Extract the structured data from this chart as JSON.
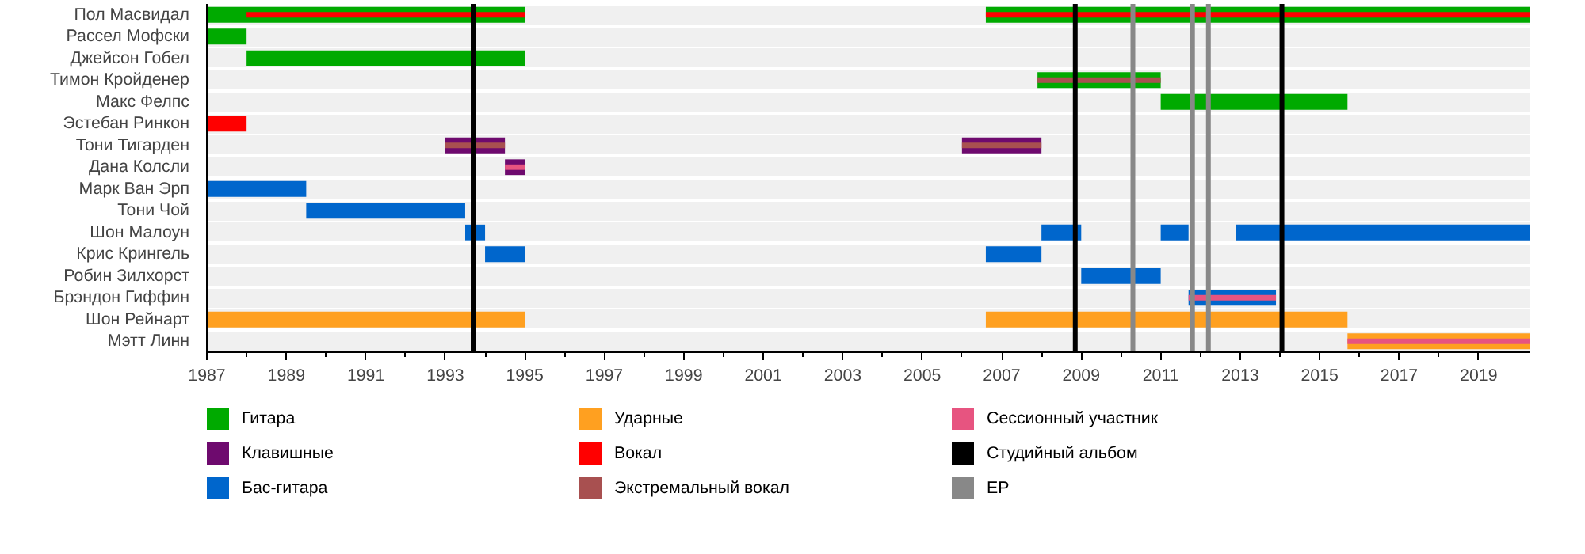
{
  "chart_data": {
    "type": "bar",
    "orientation": "horizontal",
    "grid": "y",
    "legend": "bottom",
    "categories": [
      "Пол Масвидал",
      "Рассел Мофски",
      "Джейсон Гобел",
      "Тимон Кройденер",
      "Макс Фелпс",
      "Эстебан Ринкон",
      "Тони Тигарден",
      "Дана Колсли",
      "Марк Ван Эрп",
      "Тони Чой",
      "Шон Малоун",
      "Крис Крингель",
      "Робин Зилхорст",
      "Брэндон Гиффин",
      "Шон Рейнарт",
      "Мэтт Линн"
    ],
    "xlim": [
      1987,
      2020.3
    ],
    "xticks": [
      1987,
      1989,
      1991,
      1993,
      1995,
      1997,
      1999,
      2001,
      2003,
      2005,
      2007,
      2009,
      2011,
      2013,
      2015,
      2017,
      2019
    ],
    "series": [
      {
        "name": "Гитара",
        "color": "#00aa00",
        "base": [
          1987,
          1987,
          1988,
          2007.9,
          2011,
          null,
          null,
          null,
          null,
          null,
          null,
          null,
          null,
          null,
          null,
          null
        ],
        "values": [
          8,
          1,
          7,
          3.1,
          4.7,
          null,
          null,
          null,
          null,
          null,
          null,
          null,
          null,
          null,
          null,
          null
        ]
      },
      {
        "color": "#00aa00",
        "base": [
          2006.6,
          null,
          null,
          null,
          null,
          null,
          null,
          null,
          null,
          null,
          null,
          null,
          null,
          null,
          null,
          null
        ],
        "values": [
          13.7,
          null,
          null,
          null,
          null,
          null,
          null,
          null,
          null,
          null,
          null,
          null,
          null,
          null,
          null,
          null
        ]
      },
      {
        "name": "Клавишные",
        "color": "#6e0a6e",
        "base": [
          null,
          null,
          null,
          null,
          null,
          null,
          1993,
          1994.5,
          null,
          null,
          null,
          null,
          null,
          null,
          null,
          null
        ],
        "values": [
          null,
          null,
          null,
          null,
          null,
          null,
          1.5,
          0.5,
          null,
          null,
          null,
          null,
          null,
          null,
          null,
          null
        ]
      },
      {
        "color": "#6e0a6e",
        "base": [
          null,
          null,
          null,
          null,
          null,
          null,
          2006,
          null,
          null,
          null,
          null,
          null,
          null,
          null,
          null,
          null
        ],
        "values": [
          null,
          null,
          null,
          null,
          null,
          null,
          2,
          null,
          null,
          null,
          null,
          null,
          null,
          null,
          null,
          null
        ]
      },
      {
        "name": "Бас-гитара",
        "color": "#0066cc",
        "base": [
          null,
          null,
          null,
          null,
          null,
          null,
          null,
          null,
          1987,
          1989.5,
          1993.5,
          1994,
          2009,
          2011.7,
          null,
          null
        ],
        "values": [
          null,
          null,
          null,
          null,
          null,
          null,
          null,
          null,
          2.5,
          4,
          0.5,
          1,
          2,
          2.2,
          null,
          null
        ]
      },
      {
        "color": "#0066cc",
        "base": [
          null,
          null,
          null,
          null,
          null,
          null,
          null,
          null,
          null,
          null,
          2008,
          2006.6,
          null,
          null,
          null,
          null
        ],
        "values": [
          null,
          null,
          null,
          null,
          null,
          null,
          null,
          null,
          null,
          null,
          1,
          1.4,
          null,
          null,
          null,
          null
        ]
      },
      {
        "color": "#0066cc",
        "base": [
          null,
          null,
          null,
          null,
          null,
          null,
          null,
          null,
          null,
          null,
          2011,
          null,
          null,
          null,
          null,
          null
        ],
        "values": [
          null,
          null,
          null,
          null,
          null,
          null,
          null,
          null,
          null,
          null,
          0.7,
          null,
          null,
          null,
          null,
          null
        ]
      },
      {
        "color": "#0066cc",
        "base": [
          null,
          null,
          null,
          null,
          null,
          null,
          null,
          null,
          null,
          null,
          2012.9,
          null,
          null,
          null,
          null,
          null
        ],
        "values": [
          null,
          null,
          null,
          null,
          null,
          null,
          null,
          null,
          null,
          null,
          7.4,
          null,
          null,
          null,
          null,
          null
        ]
      },
      {
        "name": "Ударные",
        "color": "#ffa020",
        "base": [
          null,
          null,
          null,
          null,
          null,
          null,
          null,
          null,
          null,
          null,
          null,
          null,
          null,
          null,
          1987,
          2015.7
        ],
        "values": [
          null,
          null,
          null,
          null,
          null,
          null,
          null,
          null,
          null,
          null,
          null,
          null,
          null,
          null,
          8,
          4.6
        ]
      },
      {
        "color": "#ffa020",
        "base": [
          null,
          null,
          null,
          null,
          null,
          null,
          null,
          null,
          null,
          null,
          null,
          null,
          null,
          null,
          2006.6,
          null
        ],
        "values": [
          null,
          null,
          null,
          null,
          null,
          null,
          null,
          null,
          null,
          null,
          null,
          null,
          null,
          null,
          9.1,
          null
        ]
      },
      {
        "name": "Вокал",
        "color": "#ff0000",
        "base": [
          1988,
          null,
          null,
          null,
          null,
          1987,
          null,
          null,
          null,
          null,
          null,
          null,
          null,
          null,
          null,
          null
        ],
        "values": [
          7,
          null,
          null,
          null,
          null,
          1,
          null,
          null,
          null,
          null,
          null,
          null,
          null,
          null,
          null,
          null
        ]
      },
      {
        "color": "#ff0000",
        "base": [
          2006.6,
          null,
          null,
          null,
          null,
          null,
          null,
          null,
          null,
          null,
          null,
          null,
          null,
          null,
          null,
          null
        ],
        "values": [
          13.7,
          null,
          null,
          null,
          null,
          null,
          null,
          null,
          null,
          null,
          null,
          null,
          null,
          null,
          null,
          null
        ]
      },
      {
        "name": "Экстремальный вокал",
        "color": "#a85050",
        "base": [
          null,
          null,
          null,
          2007.9,
          null,
          null,
          1993,
          null,
          null,
          null,
          null,
          null,
          null,
          null,
          null,
          null
        ],
        "values": [
          null,
          null,
          null,
          3.1,
          null,
          null,
          1.5,
          null,
          null,
          null,
          null,
          null,
          null,
          null,
          null,
          null
        ]
      },
      {
        "color": "#a85050",
        "base": [
          null,
          null,
          null,
          null,
          null,
          null,
          2006,
          null,
          null,
          null,
          null,
          null,
          null,
          null,
          null,
          null
        ],
        "values": [
          null,
          null,
          null,
          null,
          null,
          null,
          2,
          null,
          null,
          null,
          null,
          null,
          null,
          null,
          null,
          null
        ]
      },
      {
        "name": "Сессионный участник",
        "color": "#e75480",
        "base": [
          null,
          null,
          null,
          null,
          null,
          null,
          null,
          1994.5,
          null,
          null,
          null,
          null,
          null,
          2011.7,
          null,
          2015.7
        ],
        "values": [
          null,
          null,
          null,
          null,
          null,
          null,
          null,
          0.5,
          null,
          null,
          null,
          null,
          null,
          2.2,
          null,
          4.6
        ]
      }
    ],
    "ref_lines": [
      {
        "axis": "x",
        "value": 1993.7,
        "label": "Студийный альбом",
        "color": "#000000"
      },
      {
        "axis": "x",
        "value": 2008.85,
        "color": "#000000"
      },
      {
        "axis": "x",
        "value": 2014.05,
        "color": "#000000"
      },
      {
        "axis": "x",
        "value": 2010.3,
        "label": "EP",
        "color": "#888888"
      },
      {
        "axis": "x",
        "value": 2011.8,
        "color": "#888888"
      },
      {
        "axis": "x",
        "value": 2012.2,
        "color": "#888888"
      }
    ]
  }
}
